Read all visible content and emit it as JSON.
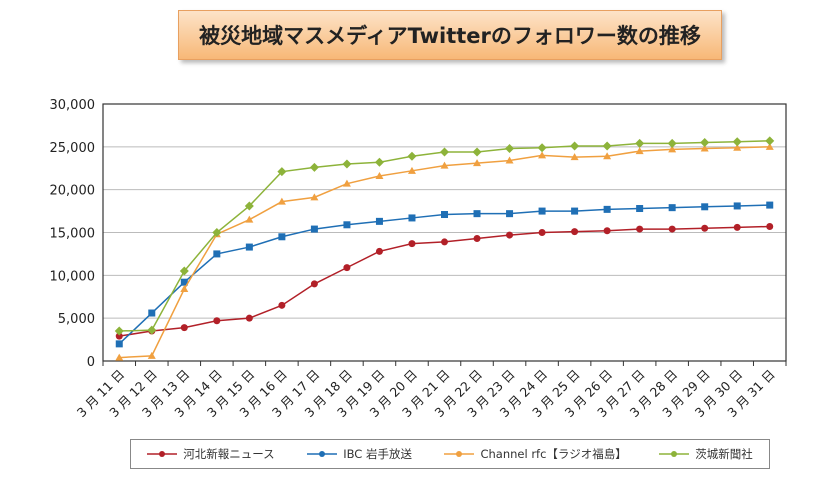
{
  "chart_data": {
    "type": "line",
    "title": "被災地域マスメディアTwitterのフォロワー数の推移",
    "categories": [
      "3月11日",
      "3月12日",
      "3月13日",
      "3月14日",
      "3月15日",
      "3月16日",
      "3月17日",
      "3月18日",
      "3月19日",
      "3月20日",
      "3月21日",
      "3月22日",
      "3月23日",
      "3月24日",
      "3月25日",
      "3月26日",
      "3月27日",
      "3月28日",
      "3月29日",
      "3月30日",
      "3月31日"
    ],
    "ylim": [
      0,
      30000
    ],
    "yticks": [
      "0",
      "5,000",
      "10,000",
      "15,000",
      "20,000",
      "25,000",
      "30,000"
    ],
    "grid": true,
    "legend": "bottom",
    "series": [
      {
        "name": "河北新報ニュース",
        "color": "#b22028",
        "marker": "circle",
        "values": [
          2900,
          3500,
          3900,
          4700,
          5000,
          6500,
          9000,
          10900,
          12800,
          13700,
          13900,
          14300,
          14700,
          15000,
          15100,
          15200,
          15400,
          15400,
          15500,
          15600,
          15700
        ]
      },
      {
        "name": "IBC 岩手放送",
        "color": "#1f6fb5",
        "marker": "square",
        "values": [
          2000,
          5600,
          9200,
          12500,
          13300,
          14500,
          15400,
          15900,
          16300,
          16700,
          17100,
          17200,
          17200,
          17500,
          17500,
          17700,
          17800,
          17900,
          18000,
          18100,
          18200
        ]
      },
      {
        "name": "Channel rfc【ラジオ福島】",
        "color": "#f0a040",
        "marker": "triangle",
        "values": [
          400,
          600,
          8400,
          14800,
          16500,
          18600,
          19100,
          20700,
          21600,
          22200,
          22800,
          23100,
          23400,
          24000,
          23800,
          23900,
          24500,
          24700,
          24800,
          24900,
          25000
        ]
      },
      {
        "name": "茨城新聞社",
        "color": "#8db33a",
        "marker": "diamond",
        "values": [
          3500,
          3600,
          10500,
          15000,
          18100,
          22100,
          22600,
          23000,
          23200,
          23900,
          24400,
          24400,
          24800,
          24900,
          25100,
          25100,
          25400,
          25400,
          25500,
          25600,
          25700
        ]
      }
    ]
  }
}
